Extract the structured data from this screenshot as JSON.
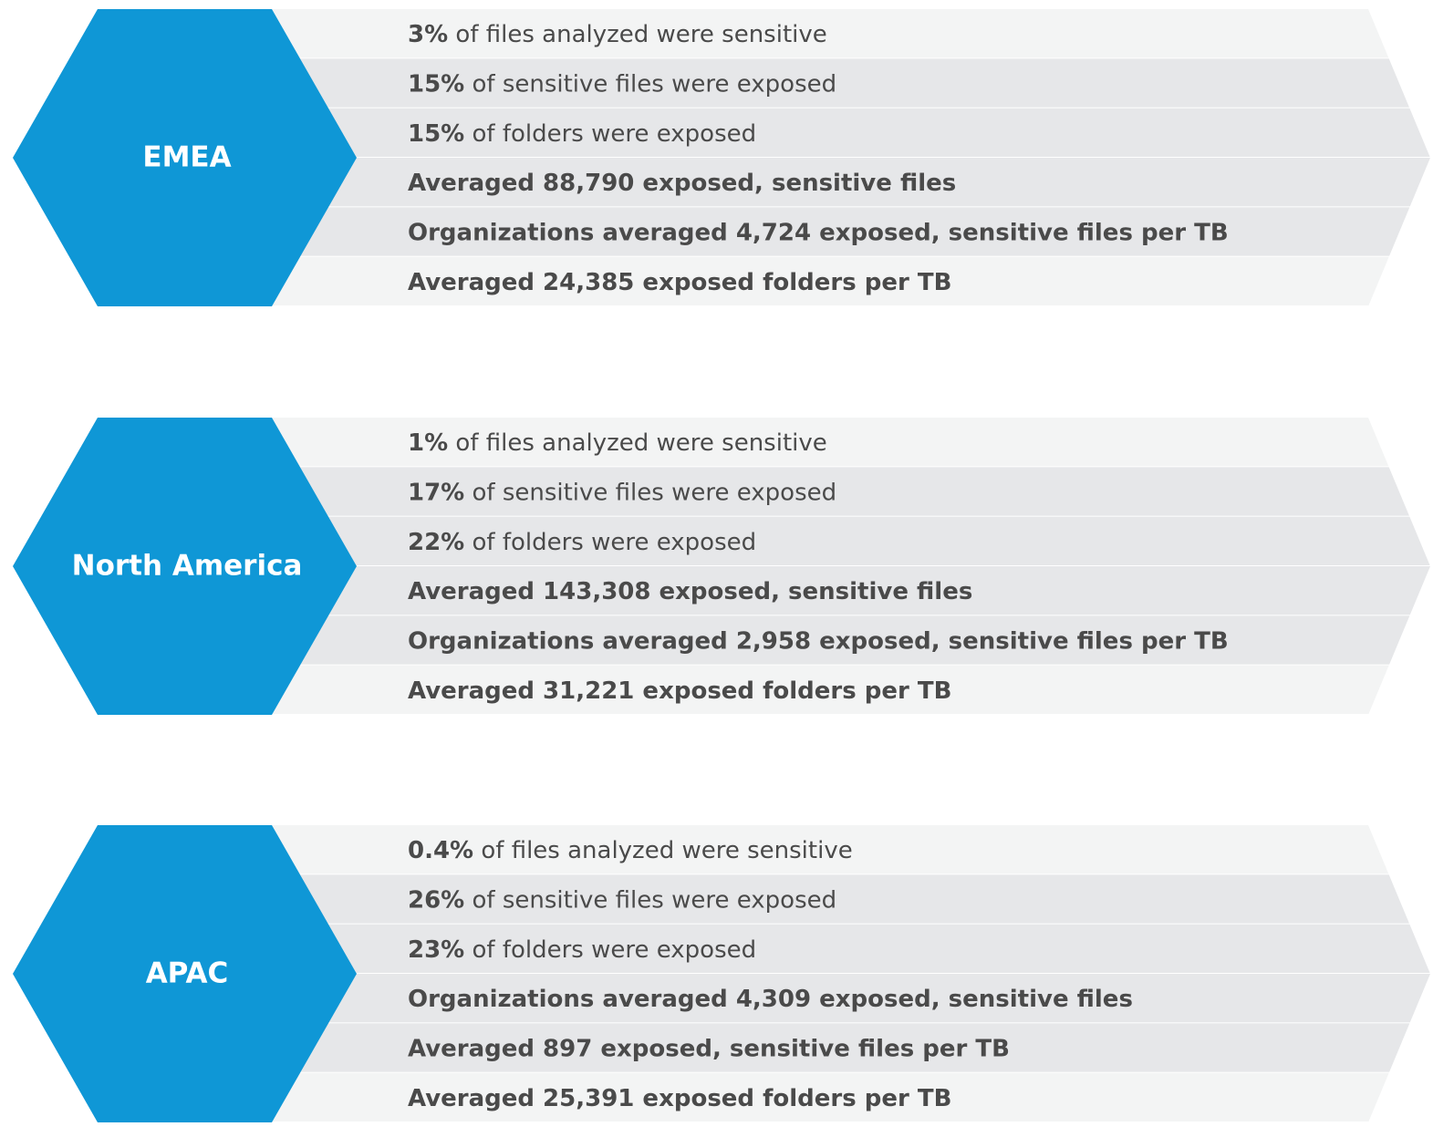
{
  "regions": [
    {
      "name": "EMEA",
      "rows": [
        {
          "bold": "3%",
          "text": " of files analyzed were sensitive"
        },
        {
          "bold": "15%",
          "text": " of sensitive files were exposed"
        },
        {
          "bold": "15%",
          "text": " of folders were exposed"
        },
        {
          "bold": "Averaged 88,790 exposed, sensitive files"
        },
        {
          "bold": "Organizations averaged 4,724 exposed, sensitive files per TB"
        },
        {
          "bold": "Averaged 24,385 exposed folders per TB"
        }
      ]
    },
    {
      "name": "North America",
      "rows": [
        {
          "bold": "1%",
          "text": " of files analyzed were sensitive"
        },
        {
          "bold": "17%",
          "text": " of sensitive files were exposed"
        },
        {
          "bold": "22%",
          "text": " of folders were exposed"
        },
        {
          "bold": "Averaged 143,308 exposed, sensitive files"
        },
        {
          "bold": "Organizations averaged 2,958 exposed, sensitive files per TB"
        },
        {
          "bold": "Averaged 31,221 exposed folders per TB"
        }
      ]
    },
    {
      "name": "APAC",
      "rows": [
        {
          "bold": "0.4%",
          "text": " of files analyzed were sensitive"
        },
        {
          "bold": "26%",
          "text": " of sensitive files were exposed"
        },
        {
          "bold": "23%",
          "text": " of folders were exposed"
        },
        {
          "bold": "Organizations averaged 4,309 exposed, sensitive files"
        },
        {
          "bold": "Averaged 897 exposed, sensitive files per TB"
        },
        {
          "bold": "Averaged 25,391 exposed folders per TB"
        }
      ]
    }
  ]
}
